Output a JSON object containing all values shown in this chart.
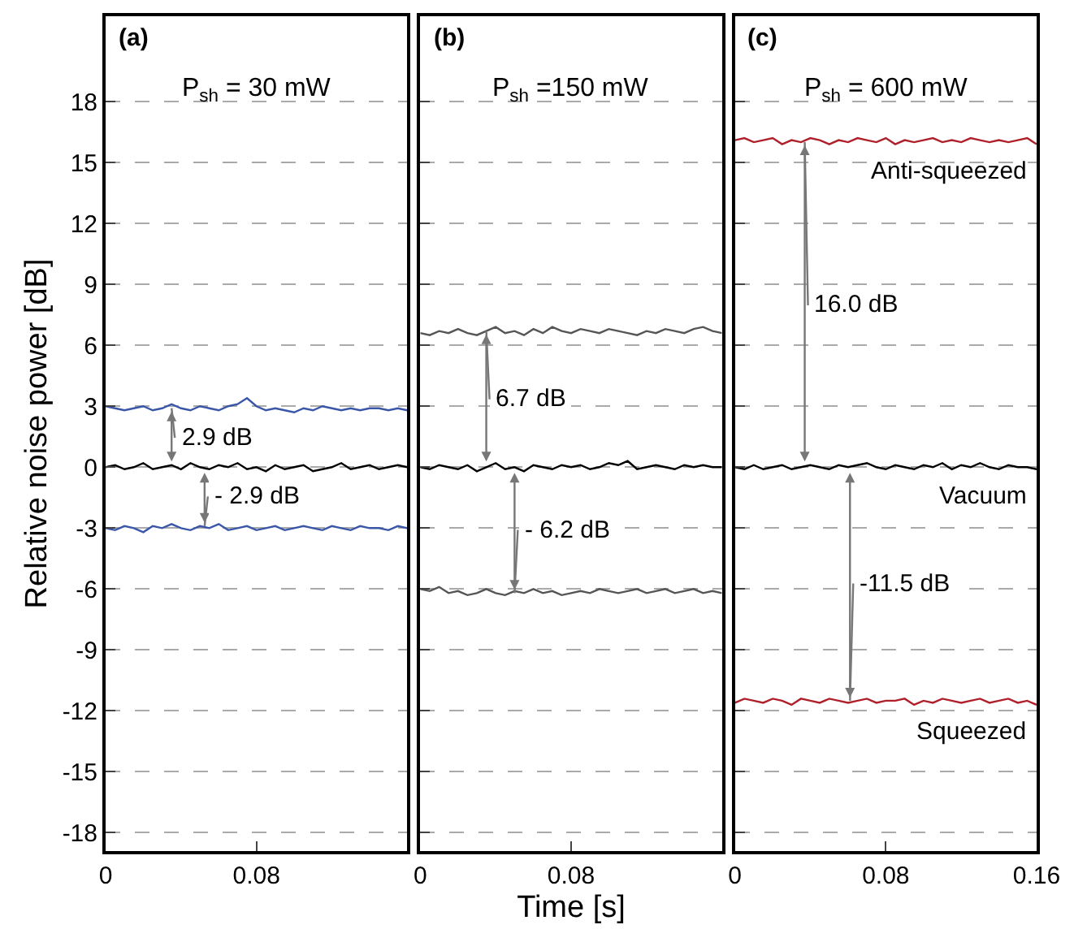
{
  "chart_data": [
    {
      "type": "line",
      "title": "(a)",
      "subtitle": "P$_{sh}$ = 30 mW",
      "ylabel": "Relative noise power [dB]",
      "xlim": [
        0,
        0.16
      ],
      "ylim": [
        -18.9,
        22.2
      ],
      "xticks": [
        0,
        0.08
      ],
      "yticks": [
        -18,
        -15,
        -12,
        -9,
        -6,
        -3,
        0,
        3,
        6,
        9,
        12,
        15,
        18
      ],
      "grid": "y",
      "x": [
        0,
        0.005,
        0.01,
        0.015,
        0.02,
        0.025,
        0.03,
        0.035,
        0.04,
        0.045,
        0.05,
        0.055,
        0.06,
        0.065,
        0.07,
        0.075,
        0.08,
        0.085,
        0.09,
        0.095,
        0.1,
        0.105,
        0.11,
        0.115,
        0.12,
        0.125,
        0.13,
        0.135,
        0.14,
        0.145,
        0.15,
        0.155,
        0.16
      ],
      "series": [
        {
          "color": "#3a56a8",
          "values": [
            3.0,
            2.9,
            2.8,
            2.9,
            3.0,
            2.8,
            2.9,
            3.1,
            2.9,
            2.8,
            3.0,
            2.9,
            2.8,
            3.0,
            3.1,
            3.4,
            3.0,
            2.8,
            2.9,
            2.8,
            2.7,
            2.9,
            2.8,
            3.0,
            2.9,
            2.8,
            2.9,
            2.8,
            2.9,
            2.9,
            2.8,
            2.9,
            2.8
          ]
        },
        {
          "color": "#000000",
          "values": [
            0.0,
            0.1,
            -0.1,
            0.0,
            0.2,
            -0.1,
            0.0,
            0.1,
            -0.1,
            0.2,
            0.0,
            -0.1,
            0.1,
            0.0,
            0.2,
            -0.1,
            0.0,
            -0.2,
            0.1,
            -0.1,
            0.0,
            0.1,
            -0.2,
            -0.1,
            0.0,
            0.2,
            -0.1,
            0.0,
            0.1,
            -0.1,
            0.0,
            0.1,
            0.0
          ]
        },
        {
          "color": "#3a56a8",
          "values": [
            -3.0,
            -3.1,
            -2.9,
            -3.0,
            -3.2,
            -2.9,
            -3.0,
            -2.8,
            -3.0,
            -3.1,
            -2.9,
            -3.0,
            -2.8,
            -3.1,
            -3.0,
            -2.9,
            -3.1,
            -3.0,
            -2.9,
            -3.1,
            -3.0,
            -2.9,
            -3.0,
            -3.1,
            -2.9,
            -3.0,
            -3.1,
            -2.9,
            -3.0,
            -3.0,
            -3.1,
            -2.9,
            -3.0
          ]
        }
      ],
      "annotations": [
        {
          "text": "2.9 dB",
          "x": 0.035,
          "y": 2.9
        },
        {
          "text": "- 2.9 dB",
          "x": 0.0525,
          "y": -2.9
        }
      ]
    },
    {
      "type": "line",
      "title": "(b)",
      "subtitle": "P$_{sh}$ =150 mW",
      "xlabel": "Time [s]",
      "xlim": [
        0,
        0.16
      ],
      "ylim": [
        -18.9,
        22.2
      ],
      "xticks": [
        0,
        0.08
      ],
      "yticks": [
        -18,
        -15,
        -12,
        -9,
        -6,
        -3,
        0,
        3,
        6,
        9,
        12,
        15,
        18
      ],
      "grid": "y",
      "tick_labels": "x",
      "x": [
        0,
        0.005,
        0.01,
        0.015,
        0.02,
        0.025,
        0.03,
        0.035,
        0.04,
        0.045,
        0.05,
        0.055,
        0.06,
        0.065,
        0.07,
        0.075,
        0.08,
        0.085,
        0.09,
        0.095,
        0.1,
        0.105,
        0.11,
        0.115,
        0.12,
        0.125,
        0.13,
        0.135,
        0.14,
        0.145,
        0.15,
        0.155,
        0.16
      ],
      "series": [
        {
          "color": "#555555",
          "values": [
            6.6,
            6.5,
            6.7,
            6.6,
            6.8,
            6.6,
            6.5,
            6.7,
            6.9,
            6.6,
            6.7,
            6.5,
            6.8,
            6.6,
            6.9,
            6.7,
            6.6,
            6.8,
            6.7,
            6.6,
            6.8,
            6.7,
            6.6,
            6.5,
            6.7,
            6.6,
            6.8,
            6.7,
            6.6,
            6.8,
            6.9,
            6.7,
            6.6
          ]
        },
        {
          "color": "#000000",
          "values": [
            0.0,
            -0.1,
            0.1,
            0.0,
            -0.1,
            0.1,
            -0.2,
            0.0,
            0.2,
            -0.1,
            0.0,
            -0.2,
            0.1,
            0.0,
            -0.1,
            0.1,
            0.0,
            0.1,
            -0.1,
            0.0,
            0.2,
            0.1,
            0.3,
            -0.1,
            0.0,
            0.1,
            0.0,
            -0.1,
            0.1,
            0.0,
            0.1,
            0.0,
            0.0
          ]
        },
        {
          "color": "#555555",
          "values": [
            -6.0,
            -6.1,
            -5.9,
            -6.2,
            -6.1,
            -6.3,
            -6.2,
            -6.0,
            -6.2,
            -6.3,
            -6.1,
            -6.2,
            -6.0,
            -6.2,
            -6.1,
            -6.3,
            -6.2,
            -6.1,
            -6.2,
            -6.0,
            -6.1,
            -6.2,
            -6.1,
            -6.0,
            -6.2,
            -6.1,
            -6.0,
            -6.2,
            -6.1,
            -6.0,
            -6.2,
            -6.1,
            -6.2
          ]
        }
      ],
      "annotations": [
        {
          "text": "6.7 dB",
          "x": 0.035,
          "y": 6.7
        },
        {
          "text": "- 6.2 dB",
          "x": 0.05,
          "y": -6.2
        }
      ]
    },
    {
      "type": "line",
      "title": "(c)",
      "subtitle": "P$_{sh}$ = 600 mW",
      "xlim": [
        0,
        0.16
      ],
      "ylim": [
        -18.9,
        22.2
      ],
      "xticks": [
        0,
        0.08,
        0.16
      ],
      "yticks": [
        -18,
        -15,
        -12,
        -9,
        -6,
        -3,
        0,
        3,
        6,
        9,
        12,
        15,
        18
      ],
      "grid": "y",
      "tick_labels": "x",
      "x": [
        0,
        0.005,
        0.01,
        0.015,
        0.02,
        0.025,
        0.03,
        0.035,
        0.04,
        0.045,
        0.05,
        0.055,
        0.06,
        0.065,
        0.07,
        0.075,
        0.08,
        0.085,
        0.09,
        0.095,
        0.1,
        0.105,
        0.11,
        0.115,
        0.12,
        0.125,
        0.13,
        0.135,
        0.14,
        0.145,
        0.15,
        0.155,
        0.16
      ],
      "series": [
        {
          "name": "Anti-squeezed",
          "color": "#b0202a",
          "values": [
            16.1,
            16.2,
            16.0,
            16.1,
            16.2,
            15.9,
            16.1,
            16.0,
            16.2,
            16.1,
            15.9,
            16.1,
            16.0,
            16.2,
            16.1,
            16.0,
            16.2,
            15.9,
            16.1,
            16.0,
            16.1,
            16.2,
            16.0,
            16.1,
            16.0,
            16.2,
            16.1,
            16.0,
            16.1,
            16.0,
            16.1,
            16.2,
            15.9
          ]
        },
        {
          "name": "Vacuum",
          "color": "#000000",
          "values": [
            0.0,
            -0.1,
            0.1,
            -0.1,
            0.0,
            0.1,
            -0.1,
            0.0,
            0.1,
            0.0,
            -0.1,
            0.1,
            0.0,
            0.1,
            0.2,
            0.0,
            -0.1,
            0.1,
            0.0,
            -0.1,
            0.1,
            0.0,
            0.2,
            -0.1,
            0.1,
            0.0,
            0.2,
            0.0,
            -0.1,
            0.1,
            0.0,
            0.0,
            -0.1
          ]
        },
        {
          "name": "Squeezed",
          "color": "#b0202a",
          "values": [
            -11.6,
            -11.4,
            -11.5,
            -11.6,
            -11.4,
            -11.5,
            -11.7,
            -11.4,
            -11.5,
            -11.6,
            -11.4,
            -11.5,
            -11.6,
            -11.5,
            -11.4,
            -11.6,
            -11.5,
            -11.5,
            -11.4,
            -11.7,
            -11.5,
            -11.6,
            -11.4,
            -11.5,
            -11.6,
            -11.5,
            -11.4,
            -11.6,
            -11.5,
            -11.4,
            -11.6,
            -11.5,
            -11.7
          ]
        }
      ],
      "annotations": [
        {
          "text": "16.0 dB",
          "x": 0.037,
          "y": 16.0
        },
        {
          "text": "-11.5 dB",
          "x": 0.061,
          "y": -11.5
        }
      ]
    }
  ]
}
